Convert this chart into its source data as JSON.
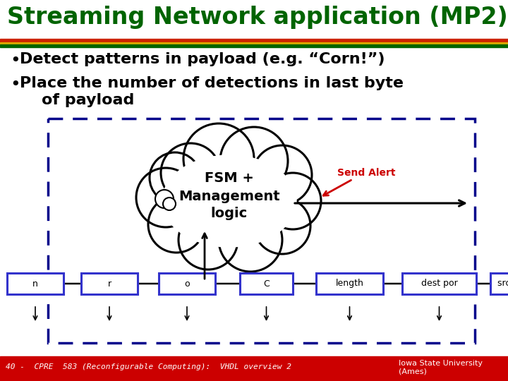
{
  "title": "Streaming Network application (MP2)",
  "title_color": "#006400",
  "title_fontsize": 24,
  "bullet1": "Detect patterns in payload (e.g. “Corn!”)",
  "bullet2": "Place the number of detections in last byte",
  "bullet3": "    of payload",
  "bullet_color": "#000000",
  "bullet_fontsize": 16,
  "fsm_text": "FSM +\nManagement\nlogic",
  "send_alert_text": "Send Alert",
  "send_alert_color": "#cc0000",
  "packet_labels": [
    "n",
    "r",
    "o",
    "C",
    "length",
    "dest por",
    "src p"
  ],
  "dashed_box_color": "#00008b",
  "packet_box_color": "#3333cc",
  "packet_bg_color": "#ffffff",
  "footer_bg": "#cc0000",
  "footer_text": "40 -  CPRE  583 (Reconfigurable Computing):  VHDL overview 2",
  "footer_right": "Iowa State University\n(Ames)",
  "footer_color": "#ffffff",
  "footer_fontsize": 8,
  "title_bar_red": "#cc2200",
  "title_bar_yellow": "#ddaa00",
  "title_bar_green": "#006400"
}
